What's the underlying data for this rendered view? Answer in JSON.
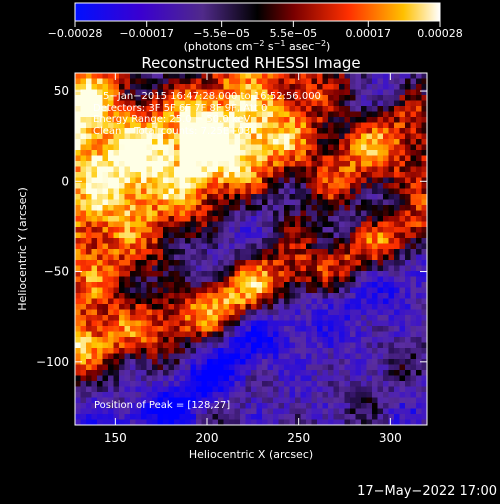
{
  "chart_data": {
    "type": "heatmap",
    "title": "Reconstructed RHESSI Image",
    "xlabel": "Heliocentric X (arcsec)",
    "ylabel": "Heliocentric Y (arcsec)",
    "xlim": [
      128,
      320
    ],
    "ylim": [
      -135,
      60
    ],
    "x_ticks": [
      {
        "value": 150,
        "label": "150"
      },
      {
        "value": 200,
        "label": "200"
      },
      {
        "value": 250,
        "label": "250"
      },
      {
        "value": 300,
        "label": "300"
      }
    ],
    "y_ticks": [
      {
        "value": 50,
        "label": "50"
      },
      {
        "value": 0,
        "label": "0"
      },
      {
        "value": -50,
        "label": "−50"
      },
      {
        "value": -100,
        "label": "−100"
      }
    ],
    "colorbar": {
      "range": [
        -0.00028,
        0.00028
      ],
      "ticks": [
        {
          "value": -0.00028,
          "label": "−0.00028"
        },
        {
          "value": -0.00017,
          "label": "−0.00017"
        },
        {
          "value": -5.5e-05,
          "label": "−5.5e−05"
        },
        {
          "value": 5.5e-05,
          "label": "5.5e−05"
        },
        {
          "value": 0.00017,
          "label": "0.00017"
        },
        {
          "value": 0.00028,
          "label": "0.00028"
        }
      ],
      "unit_label_parts": [
        "(photons cm",
        "−2",
        " s",
        "−1",
        " asec",
        "−2",
        ")"
      ]
    },
    "annotations": {
      "time_range": "5−Jan−2015 16:47:28.000 to 16:52:56.000",
      "detectors": "Detectors: 3F 5F 6F 7F 8F 9F, Att 0",
      "energy": "Energy Range: 25.0 − 50.0 keV",
      "method": "Clean    Total counts: 7.25E+03",
      "peak": "Position of Peak = [128,27]"
    },
    "peak_position": [
      128,
      27
    ],
    "colors": {
      "background": "#000000",
      "colormap_stops": [
        "#0000ff",
        "#3a00c8",
        "#5a2a9a",
        "#3c1a6a",
        "#000000",
        "#8a0000",
        "#ff3000",
        "#ffd000",
        "#ffffff"
      ]
    }
  },
  "footer": {
    "timestamp": "17−May−2022 17:00"
  }
}
